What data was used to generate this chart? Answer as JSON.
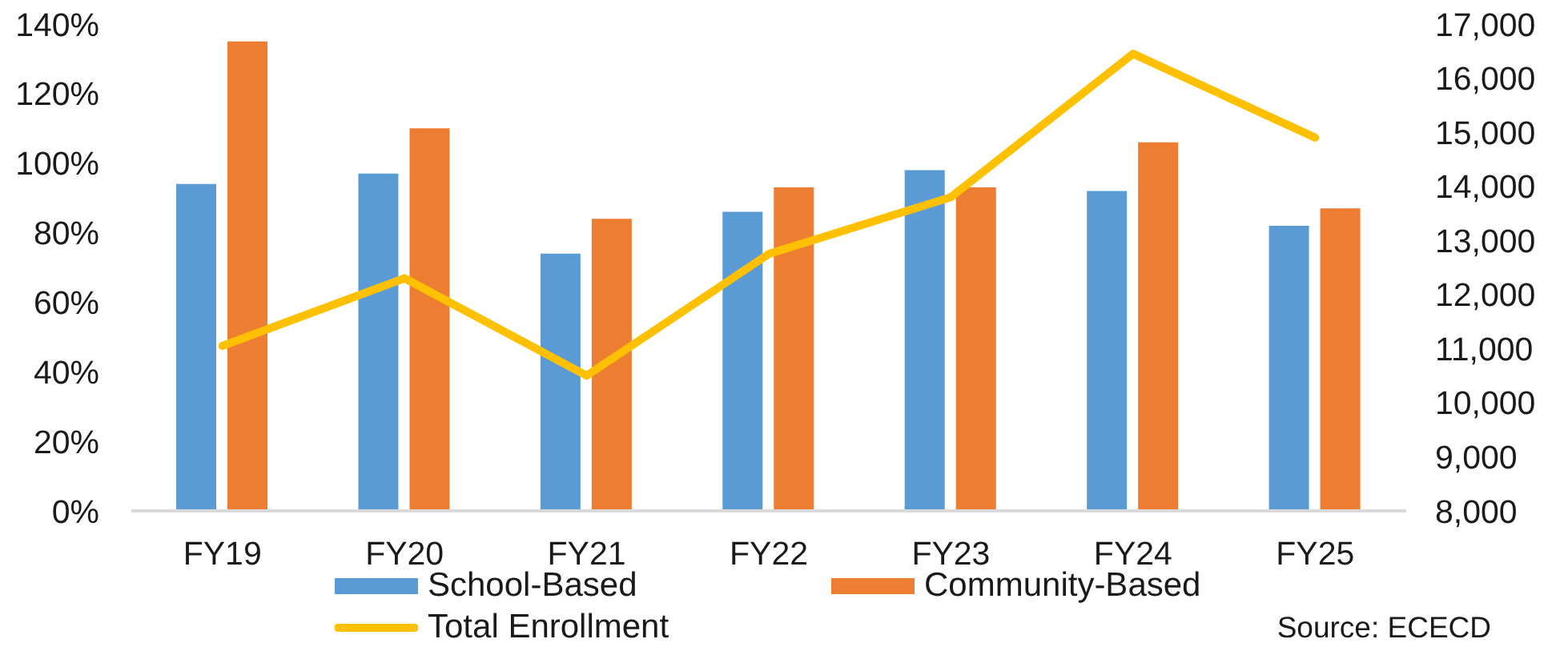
{
  "chart_data": {
    "type": "bar",
    "categories": [
      "FY19",
      "FY20",
      "FY21",
      "FY22",
      "FY23",
      "FY24",
      "FY25"
    ],
    "series": [
      {
        "name": "School-Based",
        "color": "#5b9bd5",
        "values": [
          94,
          97,
          74,
          86,
          98,
          92,
          82
        ]
      },
      {
        "name": "Community-Based",
        "color": "#ed7d31",
        "values": [
          135,
          110,
          84,
          93,
          93,
          106,
          87
        ]
      },
      {
        "name": "Total Enrollment",
        "type": "line",
        "axis": "y2",
        "color": "#ffc000",
        "marker": "none",
        "values": [
          11050,
          12300,
          10500,
          12750,
          13800,
          16450,
          14900
        ]
      }
    ],
    "ylim": [
      0,
      140
    ],
    "yticks": [
      {
        "value": 0,
        "label": "0%"
      },
      {
        "value": 20,
        "label": "20%"
      },
      {
        "value": 40,
        "label": "40%"
      },
      {
        "value": 60,
        "label": "60%"
      },
      {
        "value": 80,
        "label": "80%"
      },
      {
        "value": 100,
        "label": "100%"
      },
      {
        "value": 120,
        "label": "120%"
      },
      {
        "value": 140,
        "label": "140%"
      }
    ],
    "y2lim": [
      8000,
      17000
    ],
    "y2ticks": [
      {
        "value": 8000,
        "label": "8,000"
      },
      {
        "value": 9000,
        "label": "9,000"
      },
      {
        "value": 10000,
        "label": "10,000"
      },
      {
        "value": 11000,
        "label": "11,000"
      },
      {
        "value": 12000,
        "label": "12,000"
      },
      {
        "value": 13000,
        "label": "13,000"
      },
      {
        "value": 14000,
        "label": "14,000"
      },
      {
        "value": 15000,
        "label": "15,000"
      },
      {
        "value": 16000,
        "label": "16,000"
      },
      {
        "value": 17000,
        "label": "17,000"
      }
    ],
    "legend": "bottom",
    "annotations": [
      "Source: ECECD"
    ]
  }
}
